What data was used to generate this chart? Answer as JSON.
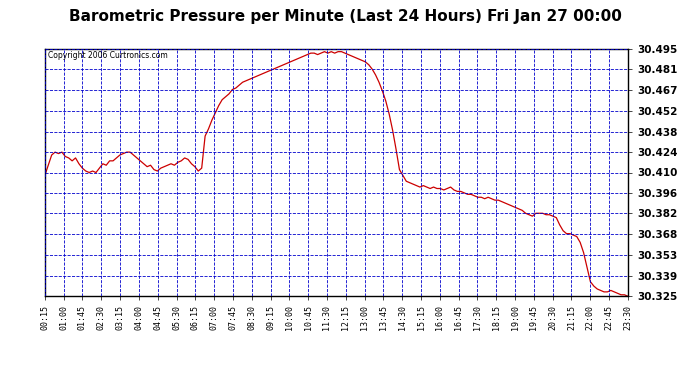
{
  "title": "Barometric Pressure per Minute (Last 24 Hours) Fri Jan 27 00:00",
  "copyright_text": "Copyright 2006 Curtronics.com",
  "bg_color": "#ffffff",
  "plot_bg_color": "#ffffff",
  "line_color": "#cc0000",
  "grid_color": "#0000cc",
  "title_fontsize": 11,
  "y_min": 30.325,
  "y_max": 30.495,
  "x_labels": [
    "00:15",
    "01:00",
    "01:45",
    "02:30",
    "03:15",
    "04:00",
    "04:45",
    "05:30",
    "06:15",
    "07:00",
    "07:45",
    "08:30",
    "09:15",
    "10:00",
    "10:45",
    "11:30",
    "12:15",
    "13:00",
    "13:45",
    "14:30",
    "15:15",
    "16:00",
    "16:45",
    "17:30",
    "18:15",
    "19:00",
    "19:45",
    "20:30",
    "21:15",
    "22:00",
    "22:45",
    "23:30"
  ],
  "y_ticks": [
    30.325,
    30.339,
    30.353,
    30.368,
    30.382,
    30.396,
    30.41,
    30.424,
    30.438,
    30.452,
    30.467,
    30.481,
    30.495
  ],
  "pressure_data": [
    30.408,
    30.415,
    30.422,
    30.424,
    30.423,
    30.424,
    30.421,
    30.42,
    30.418,
    30.42,
    30.416,
    30.413,
    30.411,
    30.41,
    30.411,
    30.41,
    30.413,
    30.416,
    30.415,
    30.418,
    30.418,
    30.42,
    30.422,
    30.423,
    30.424,
    30.424,
    30.422,
    30.42,
    30.418,
    30.416,
    30.414,
    30.415,
    30.412,
    30.411,
    30.413,
    30.414,
    30.415,
    30.416,
    30.415,
    30.417,
    30.418,
    30.42,
    30.419,
    30.416,
    30.414,
    30.411,
    30.413,
    30.435,
    30.44,
    30.446,
    30.451,
    30.456,
    30.46,
    30.462,
    30.464,
    30.467,
    30.468,
    30.47,
    30.472,
    30.473,
    30.474,
    30.475,
    30.476,
    30.477,
    30.478,
    30.479,
    30.48,
    30.481,
    30.482,
    30.483,
    30.484,
    30.485,
    30.486,
    30.487,
    30.488,
    30.489,
    30.49,
    30.491,
    30.492,
    30.492,
    30.491,
    30.492,
    30.493,
    30.492,
    30.493,
    30.492,
    30.493,
    30.493,
    30.492,
    30.491,
    30.49,
    30.489,
    30.488,
    30.487,
    30.486,
    30.484,
    30.481,
    30.477,
    30.472,
    30.466,
    30.459,
    30.45,
    30.439,
    30.426,
    30.412,
    30.408,
    30.404,
    30.403,
    30.402,
    30.401,
    30.4,
    30.401,
    30.4,
    30.399,
    30.4,
    30.399,
    30.399,
    30.398,
    30.399,
    30.4,
    30.398,
    30.397,
    30.397,
    30.396,
    30.395,
    30.395,
    30.394,
    30.393,
    30.393,
    30.392,
    30.393,
    30.392,
    30.391,
    30.391,
    30.39,
    30.389,
    30.388,
    30.387,
    30.386,
    30.385,
    30.384,
    30.382,
    30.381,
    30.38,
    30.382,
    30.382,
    30.382,
    30.381,
    30.381,
    30.38,
    30.379,
    30.374,
    30.37,
    30.368,
    30.368,
    30.367,
    30.366,
    30.362,
    30.355,
    30.345,
    30.335,
    30.332,
    30.33,
    30.329,
    30.328,
    30.328,
    30.329,
    30.328,
    30.327,
    30.326,
    30.326,
    30.325
  ]
}
